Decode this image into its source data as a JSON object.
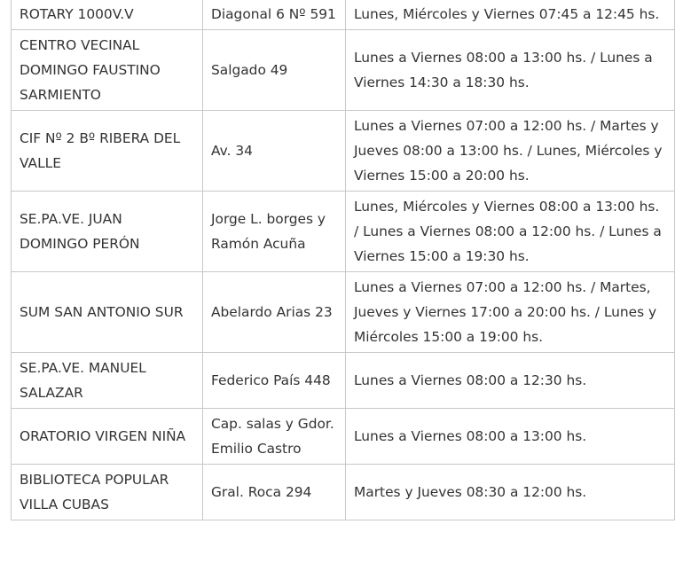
{
  "table": {
    "rows": [
      [
        "ROTARY 1000V.V",
        "Diagonal 6 Nº 591",
        "Lunes, Miércoles y Viernes 07:45 a 12:45 hs."
      ],
      [
        "CENTRO VECINAL DOMINGO FAUSTINO SARMIENTO",
        "Salgado 49",
        "Lunes a Viernes 08:00 a 13:00 hs. / Lunes a Viernes 14:30 a 18:30 hs."
      ],
      [
        "CIF Nº 2 Bº RIBERA DEL VALLE",
        "Av. 34",
        "Lunes a Viernes 07:00 a 12:00 hs. / Martes y Jueves 08:00 a 13:00 hs. / Lunes, Miércoles y Viernes 15:00 a 20:00 hs."
      ],
      [
        "SE.PA.VE. JUAN DOMINGO PERÓN",
        "Jorge L. borges y Ramón Acuña",
        "Lunes, Miércoles y Viernes 08:00 a 13:00 hs. / Lunes a Viernes 08:00 a 12:00 hs. / Lunes a Viernes 15:00 a 19:30 hs."
      ],
      [
        "SUM SAN ANTONIO SUR",
        "Abelardo Arias 23",
        "Lunes a Viernes 07:00 a 12:00 hs. / Martes, Jueves y Viernes 17:00 a 20:00 hs. / Lunes y Miércoles 15:00 a 19:00 hs."
      ],
      [
        "SE.PA.VE. MANUEL SALAZAR",
        "Federico País 448",
        "Lunes a Viernes 08:00 a 12:30 hs."
      ],
      [
        "ORATORIO VIRGEN NIÑA",
        "Cap. salas y Gdor. Emilio Castro",
        "Lunes a Viernes 08:00 a 13:00 hs."
      ],
      [
        "BIBLIOTECA POPULAR VILLA CUBAS",
        "Gral. Roca 294",
        "Martes y Jueves 08:30 a 12:00 hs."
      ]
    ]
  }
}
